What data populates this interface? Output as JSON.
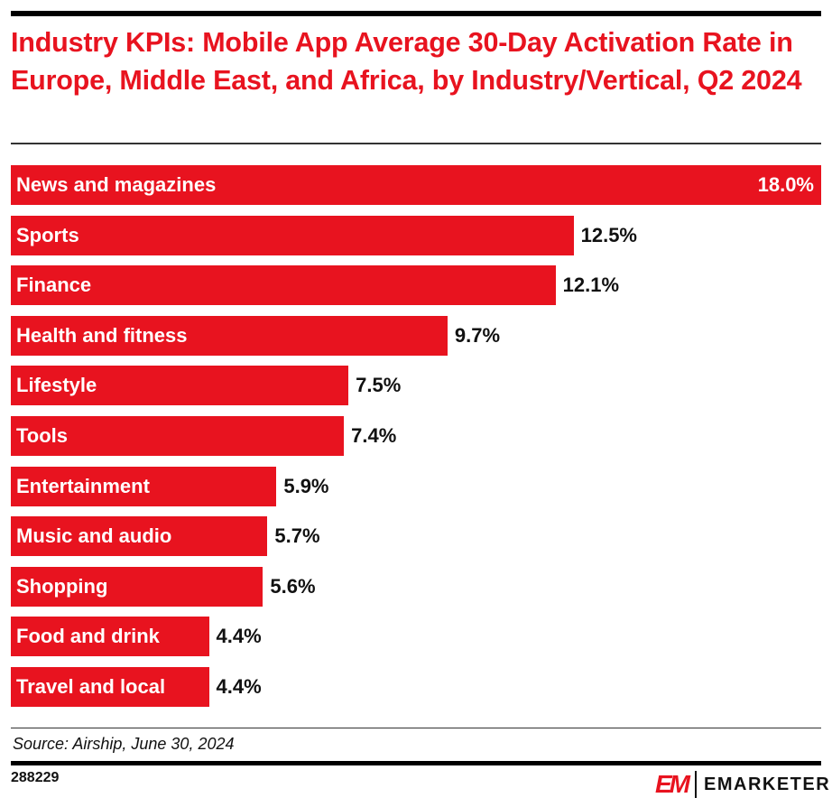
{
  "title": "Industry KPIs: Mobile App Average 30-Day Activation Rate in Europe, Middle East, and Africa, by Industry/Vertical, Q2 2024",
  "source": "Source: Airship, June 30, 2024",
  "chart_id": "288229",
  "brand": {
    "mark": "EM",
    "name": "EMARKETER"
  },
  "colors": {
    "bar": "#e8131f",
    "title": "#e8131f"
  },
  "chart_data": {
    "type": "bar",
    "orientation": "horizontal",
    "title": "Industry KPIs: Mobile App Average 30-Day Activation Rate in Europe, Middle East, and Africa, by Industry/Vertical, Q2 2024",
    "categories": [
      "News and magazines",
      "Sports",
      "Finance",
      "Health and fitness",
      "Lifestyle",
      "Tools",
      "Entertainment",
      "Music and audio",
      "Shopping",
      "Food and drink",
      "Travel and local"
    ],
    "values": [
      18.0,
      12.5,
      12.1,
      9.7,
      7.5,
      7.4,
      5.9,
      5.7,
      5.6,
      4.4,
      4.4
    ],
    "value_labels": [
      "18.0%",
      "12.5%",
      "12.1%",
      "9.7%",
      "7.5%",
      "7.4%",
      "5.9%",
      "5.7%",
      "5.6%",
      "4.4%",
      "4.4%"
    ],
    "unit": "%",
    "xlim": [
      0,
      18.0
    ],
    "grid": false,
    "legend": "none"
  }
}
